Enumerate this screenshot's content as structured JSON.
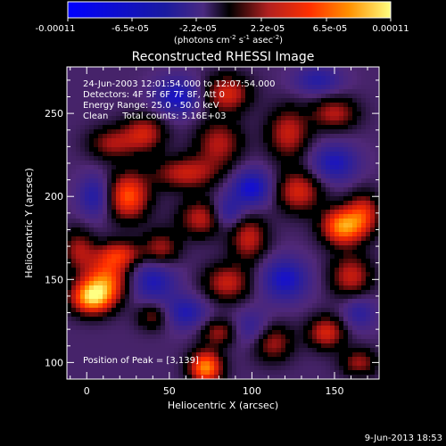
{
  "colorbar": {
    "tick_labels": [
      "-0.00011",
      "-6.5e-05",
      "-2.2e-05",
      "2.2e-05",
      "6.5e-05",
      "0.00011"
    ],
    "units_text": "(photons cm",
    "units_sup1": "-2",
    "units_mid": " s",
    "units_sup2": "-1",
    "units_end": " asec",
    "units_sup3": "-2",
    "units_close": ")",
    "range": [
      -0.00011,
      0.00011
    ]
  },
  "annotations": {
    "time_range": "24-Jun-2003 12:01:54.000 to 12:07:54.000",
    "detectors": "Detectors: 4F 5F 6F 7F 8F, Att 0",
    "energy": "Energy Range: 25.0 - 50.0 keV",
    "method": "Clean     Total counts: 5.16E+03",
    "peak": "Position of Peak = [3,139]"
  },
  "footer": {
    "date": "9-Jun-2013 18:53"
  },
  "chart_data": {
    "type": "heatmap",
    "title": "Reconstructed RHESSI Image",
    "xlabel": "Heliocentric X (arcsec)",
    "ylabel": "Heliocentric Y (arcsec)",
    "xlim": [
      -12,
      177
    ],
    "ylim": [
      90,
      278
    ],
    "x_ticks": [
      0,
      50,
      100,
      150
    ],
    "y_ticks": [
      100,
      150,
      200,
      250
    ],
    "zrange": [
      -0.00011,
      0.00011
    ],
    "sources": [
      {
        "x": 3,
        "y": 139,
        "amp": 1.0,
        "sx": 9,
        "sy": 7
      },
      {
        "x": 12,
        "y": 150,
        "amp": 0.75,
        "sx": 10,
        "sy": 9
      },
      {
        "x": 20,
        "y": 165,
        "amp": 0.6,
        "sx": 10,
        "sy": 6
      },
      {
        "x": 25,
        "y": 200,
        "amp": 0.8,
        "sx": 9,
        "sy": 10
      },
      {
        "x": 15,
        "y": 232,
        "amp": 0.45,
        "sx": 10,
        "sy": 7
      },
      {
        "x": 35,
        "y": 238,
        "amp": 0.55,
        "sx": 9,
        "sy": 8
      },
      {
        "x": 60,
        "y": 214,
        "amp": 0.55,
        "sx": 14,
        "sy": 7
      },
      {
        "x": 80,
        "y": 232,
        "amp": 0.5,
        "sx": 10,
        "sy": 10
      },
      {
        "x": 85,
        "y": 262,
        "amp": 0.6,
        "sx": 10,
        "sy": 8
      },
      {
        "x": 70,
        "y": 187,
        "amp": 0.55,
        "sx": 10,
        "sy": 8
      },
      {
        "x": 45,
        "y": 168,
        "amp": 0.5,
        "sx": 8,
        "sy": 8
      },
      {
        "x": 85,
        "y": 148,
        "amp": 0.55,
        "sx": 10,
        "sy": 8
      },
      {
        "x": 98,
        "y": 175,
        "amp": 0.55,
        "sx": 8,
        "sy": 10
      },
      {
        "x": 72,
        "y": 97,
        "amp": 0.95,
        "sx": 7,
        "sy": 7
      },
      {
        "x": 80,
        "y": 118,
        "amp": 0.45,
        "sx": 8,
        "sy": 6
      },
      {
        "x": 112,
        "y": 112,
        "amp": 0.5,
        "sx": 9,
        "sy": 8
      },
      {
        "x": 128,
        "y": 203,
        "amp": 0.6,
        "sx": 10,
        "sy": 9
      },
      {
        "x": 122,
        "y": 238,
        "amp": 0.55,
        "sx": 9,
        "sy": 11
      },
      {
        "x": 150,
        "y": 250,
        "amp": 0.5,
        "sx": 10,
        "sy": 7
      },
      {
        "x": 155,
        "y": 182,
        "amp": 0.95,
        "sx": 9,
        "sy": 8
      },
      {
        "x": 168,
        "y": 190,
        "amp": 0.55,
        "sx": 7,
        "sy": 9
      },
      {
        "x": 160,
        "y": 152,
        "amp": 0.55,
        "sx": 9,
        "sy": 9
      },
      {
        "x": 145,
        "y": 118,
        "amp": 0.6,
        "sx": 8,
        "sy": 7
      },
      {
        "x": 165,
        "y": 100,
        "amp": 0.45,
        "sx": 8,
        "sy": 6
      },
      {
        "x": 40,
        "y": 128,
        "amp": 0.4,
        "sx": 7,
        "sy": 6
      },
      {
        "x": -5,
        "y": 168,
        "amp": 0.45,
        "sx": 7,
        "sy": 9
      },
      {
        "x": 55,
        "y": 260,
        "amp": -0.55,
        "sx": 10,
        "sy": 8
      },
      {
        "x": 100,
        "y": 205,
        "amp": -0.6,
        "sx": 9,
        "sy": 8
      },
      {
        "x": 85,
        "y": 190,
        "amp": -0.45,
        "sx": 7,
        "sy": 7
      },
      {
        "x": 120,
        "y": 150,
        "amp": -0.55,
        "sx": 10,
        "sy": 9
      },
      {
        "x": 40,
        "y": 150,
        "amp": -0.5,
        "sx": 10,
        "sy": 10
      },
      {
        "x": 150,
        "y": 220,
        "amp": -0.5,
        "sx": 10,
        "sy": 8
      },
      {
        "x": 60,
        "y": 130,
        "amp": -0.45,
        "sx": 9,
        "sy": 7
      },
      {
        "x": 5,
        "y": 200,
        "amp": -0.45,
        "sx": 7,
        "sy": 9
      },
      {
        "x": 140,
        "y": 270,
        "amp": -0.4,
        "sx": 10,
        "sy": 6
      },
      {
        "x": 100,
        "y": 120,
        "amp": -0.35,
        "sx": 8,
        "sy": 8
      },
      {
        "x": 165,
        "y": 130,
        "amp": -0.35,
        "sx": 7,
        "sy": 7
      }
    ],
    "peak_position": [
      3,
      139
    ]
  }
}
